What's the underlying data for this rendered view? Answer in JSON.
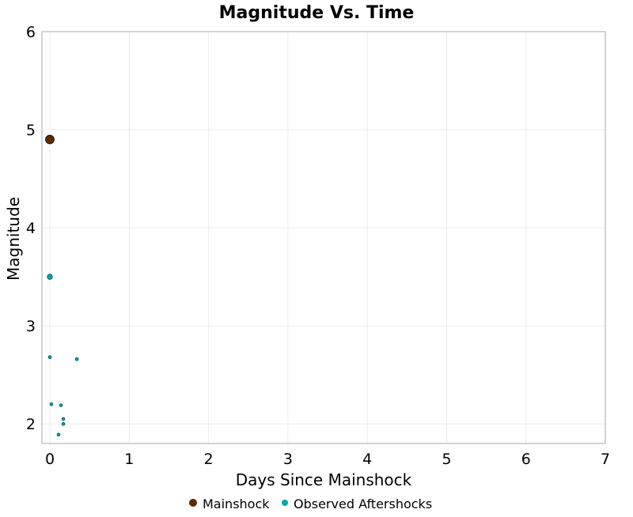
{
  "chart_data": {
    "type": "scatter",
    "title": "Magnitude Vs. Time",
    "xlabel": "Days Since Mainshock",
    "ylabel": "Magnitude",
    "xlim": [
      -0.1,
      7
    ],
    "ylim": [
      1.8,
      6
    ],
    "xticks": [
      "0",
      "1",
      "2",
      "3",
      "4",
      "5",
      "6",
      "7"
    ],
    "yticks": [
      "2",
      "3",
      "4",
      "5",
      "6"
    ],
    "grid": true,
    "legend_position": "bottom",
    "series": [
      {
        "name": "Mainshock",
        "color": "#5a2a00",
        "points": [
          {
            "x": 0.0,
            "y": 4.9
          }
        ]
      },
      {
        "name": "Observed Aftershocks",
        "color": "#00aaaa",
        "points": [
          {
            "x": 0.0,
            "y": 3.5
          },
          {
            "x": 0.0,
            "y": 2.68
          },
          {
            "x": 0.34,
            "y": 2.66
          },
          {
            "x": 0.02,
            "y": 2.2
          },
          {
            "x": 0.14,
            "y": 2.19
          },
          {
            "x": 0.17,
            "y": 2.05
          },
          {
            "x": 0.17,
            "y": 2.0
          },
          {
            "x": 0.11,
            "y": 1.89
          }
        ]
      }
    ]
  }
}
